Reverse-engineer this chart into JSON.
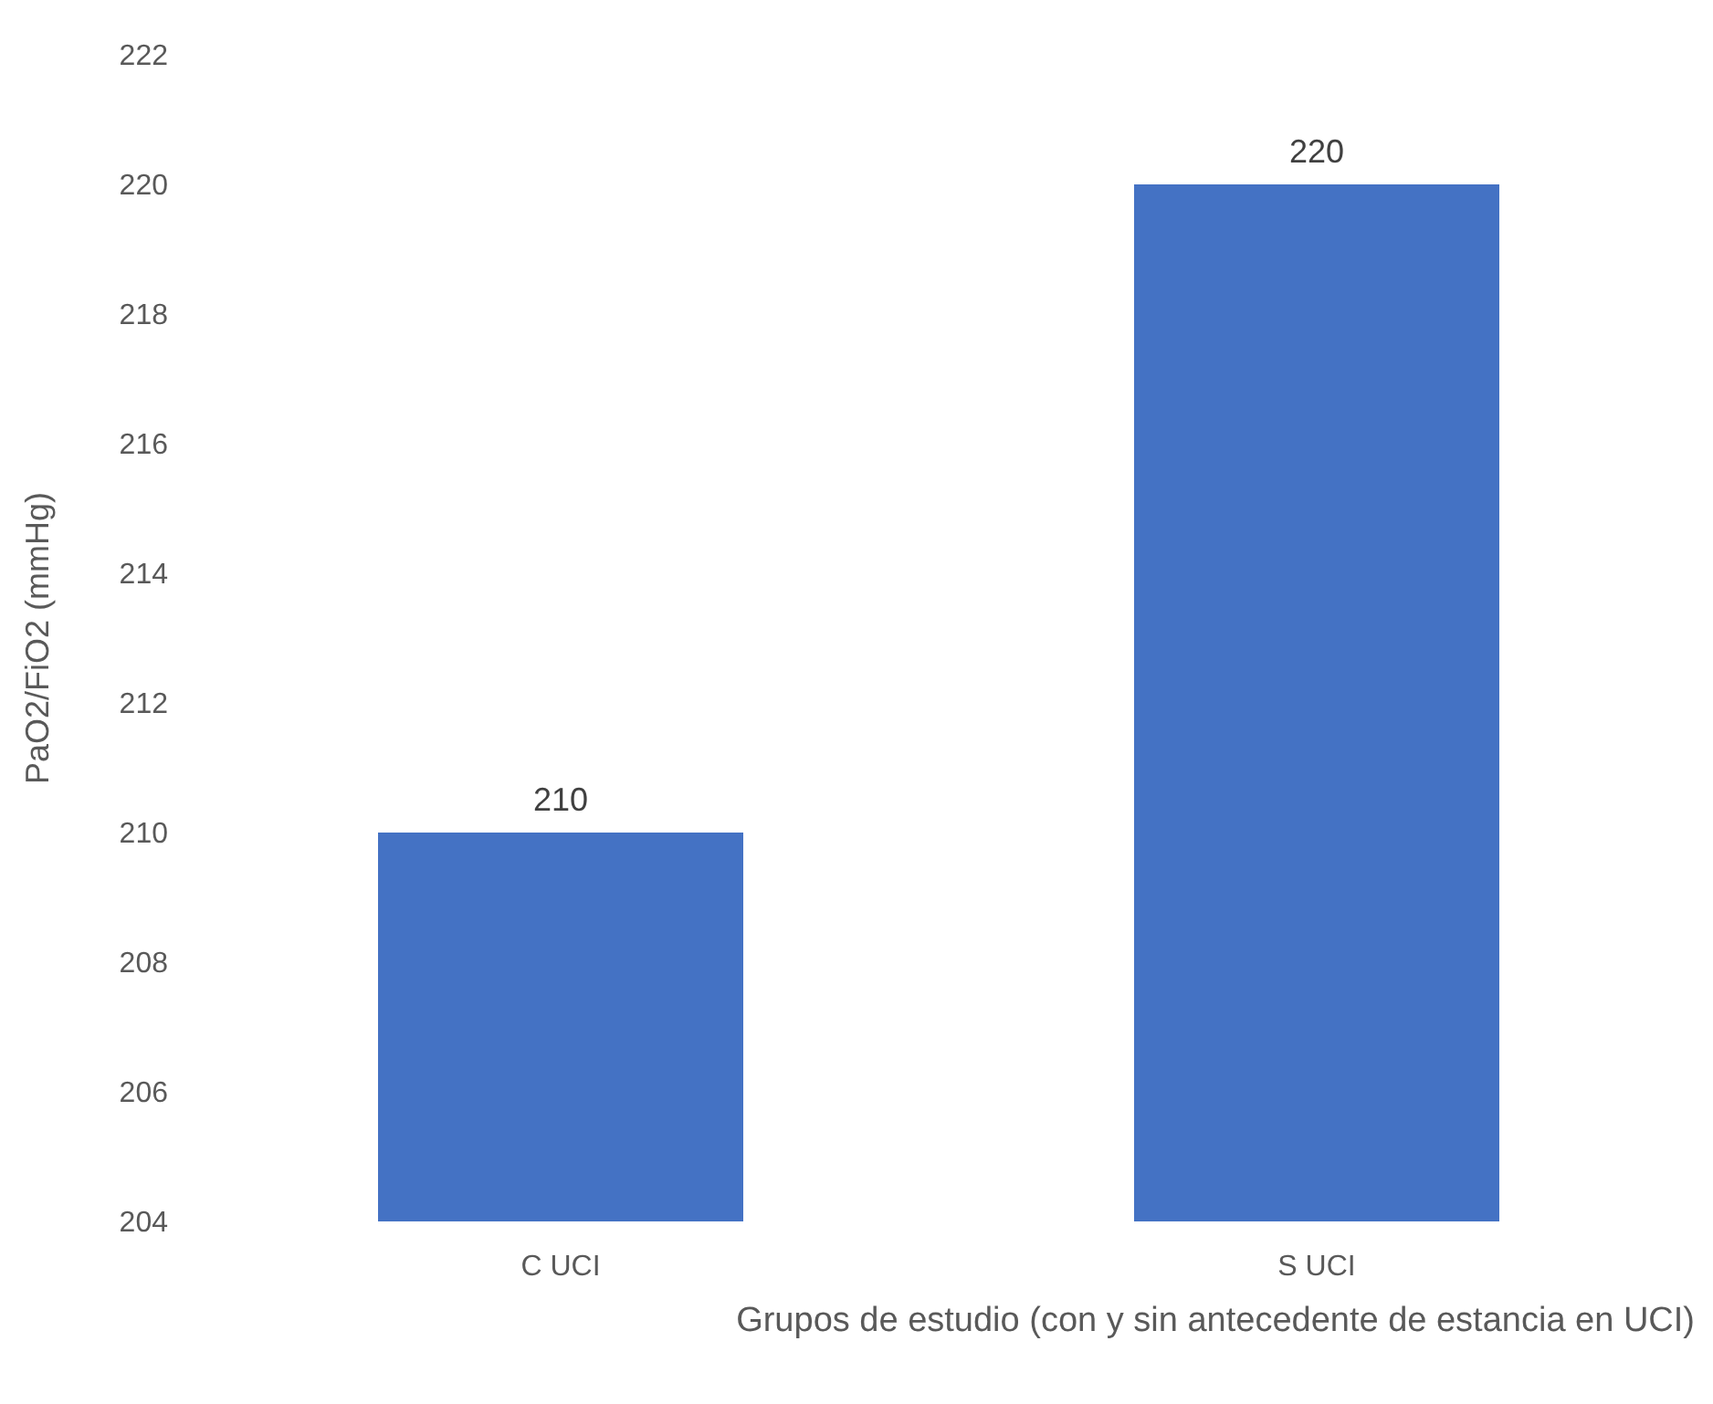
{
  "chart_data": {
    "type": "bar",
    "xlabel": "Grupos de estudio (con y sin antecedente de estancia en UCI)",
    "ylabel": "PaO2/FiO2 (mmHg)",
    "categories": [
      "C UCI",
      "S UCI"
    ],
    "values": [
      210,
      220
    ],
    "color": "#4472c4",
    "ylim": [
      204,
      222
    ],
    "yticks": [
      204,
      206,
      208,
      210,
      212,
      214,
      216,
      218,
      220,
      222
    ],
    "data_labels": true
  }
}
